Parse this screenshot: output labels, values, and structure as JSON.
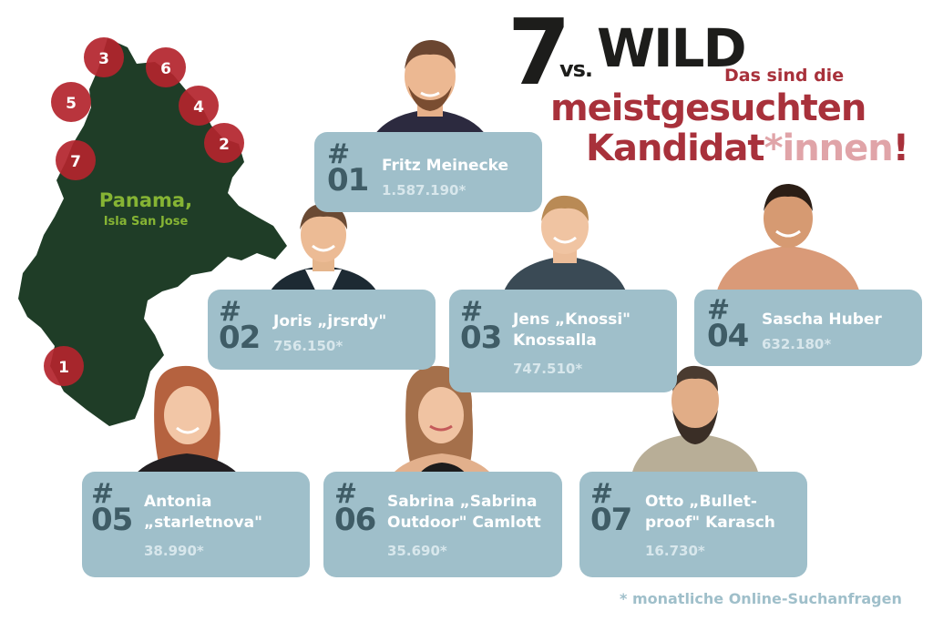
{
  "title": {
    "number": "7",
    "vs": "vs.",
    "wild": "WILD",
    "line1": "Das sind die",
    "line2": "meistgesuchten",
    "line3_main": "Kandidat",
    "line3_star": "*innen",
    "line3_end": "!"
  },
  "map": {
    "place": "Panama,",
    "island": "Isla San Jose",
    "markers": [
      "1",
      "2",
      "3",
      "4",
      "5",
      "6",
      "7"
    ]
  },
  "candidates": [
    {
      "hash": "#",
      "rank": "01",
      "name": "Fritz Meinecke",
      "count": "1.587.190*"
    },
    {
      "hash": "#",
      "rank": "02",
      "name": "Joris „jrsrdy\"",
      "count": "756.150*"
    },
    {
      "hash": "#",
      "rank": "03",
      "name": "Jens „Knossi\"\nKnossalla",
      "count": "747.510*"
    },
    {
      "hash": "#",
      "rank": "04",
      "name": "Sascha Huber",
      "count": "632.180*"
    },
    {
      "hash": "#",
      "rank": "05",
      "name": "Antonia\n„starletnova\"",
      "count": "38.990*"
    },
    {
      "hash": "#",
      "rank": "06",
      "name": "Sabrina „Sabrina\nOutdoor\" Camlott",
      "count": "35.690*"
    },
    {
      "hash": "#",
      "rank": "07",
      "name": "Otto „Bullet-\nproof\" Karasch",
      "count": "16.730*"
    }
  ],
  "footnote": "* monatliche Online-Suchanfragen",
  "colors": {
    "card": "#9fbfca",
    "rank": "#3f5c66",
    "accent": "#a8313b",
    "map": "#1f3d27",
    "marker": "#b3242c"
  }
}
